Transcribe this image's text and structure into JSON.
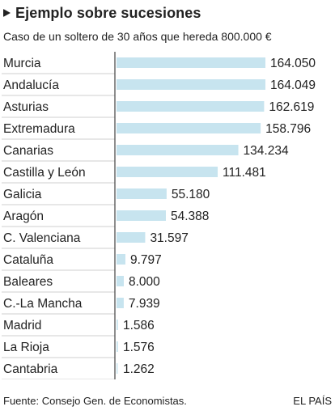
{
  "header": {
    "title": "Ejemplo sobre sucesiones",
    "subtitle": "Caso de un soltero de 30 años que hereda 800.000 €"
  },
  "chart_data": {
    "type": "bar",
    "orientation": "horizontal",
    "categories": [
      "Murcia",
      "Andalucía",
      "Asturias",
      "Extremadura",
      "Canarias",
      "Castilla y León",
      "Galicia",
      "Aragón",
      "C. Valenciana",
      "Cataluña",
      "Baleares",
      "C.-La Mancha",
      "Madrid",
      "La Rioja",
      "Cantabria"
    ],
    "values": [
      164050,
      164049,
      162619,
      158796,
      134234,
      111481,
      55180,
      54388,
      31597,
      9797,
      8000,
      7939,
      1586,
      1576,
      1262
    ],
    "value_labels": [
      "164.050",
      "164.049",
      "162.619",
      "158.796",
      "134.234",
      "111.481",
      "55.180",
      "54.388",
      "31.597",
      "9.797",
      "8.000",
      "7.939",
      "1.586",
      "1.576",
      "1.262"
    ],
    "title": "Ejemplo sobre sucesiones",
    "subtitle": "Caso de un soltero de 30 años que hereda 800.000 €",
    "xlabel": "",
    "ylabel": "",
    "xlim": [
      0,
      164050
    ],
    "grid": false,
    "bar_color": "#c7e4ef"
  },
  "footer": {
    "source": "Fuente: Consejo Gen. de Economistas.",
    "brand": "EL PAÍS"
  }
}
